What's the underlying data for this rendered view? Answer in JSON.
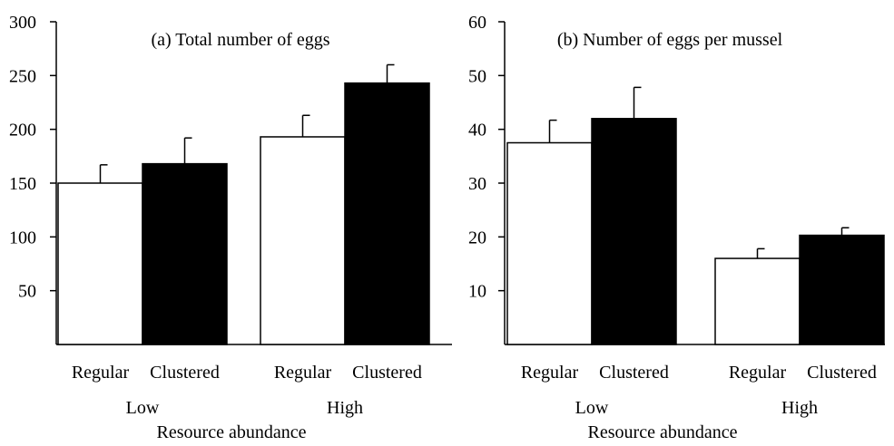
{
  "chart_data": [
    {
      "type": "bar",
      "title": "(a) Total number of eggs",
      "xlabel": "Resource abundance",
      "ylabel": "",
      "ylim": [
        0,
        300
      ],
      "yticks": [
        50,
        100,
        150,
        200,
        250,
        300
      ],
      "groups": [
        "Low",
        "High"
      ],
      "categories": [
        "Regular",
        "Clustered"
      ],
      "series": [
        {
          "values": [
            150,
            193
          ],
          "errors": [
            17,
            20
          ],
          "color": "#ffffff"
        },
        {
          "values": [
            168,
            243
          ],
          "errors": [
            24,
            17
          ],
          "color": "#000000"
        }
      ]
    },
    {
      "type": "bar",
      "title": "(b) Number of eggs per mussel",
      "xlabel": "Resource abundance",
      "ylabel": "",
      "ylim": [
        0,
        60
      ],
      "yticks": [
        10,
        20,
        30,
        40,
        50,
        60
      ],
      "groups": [
        "Low",
        "High"
      ],
      "categories": [
        "Regular",
        "Clustered"
      ],
      "series": [
        {
          "values": [
            37.5,
            16
          ],
          "errors": [
            4.2,
            1.8
          ],
          "color": "#ffffff"
        },
        {
          "values": [
            42,
            20.3
          ],
          "errors": [
            5.8,
            1.4
          ],
          "color": "#000000"
        }
      ]
    }
  ]
}
